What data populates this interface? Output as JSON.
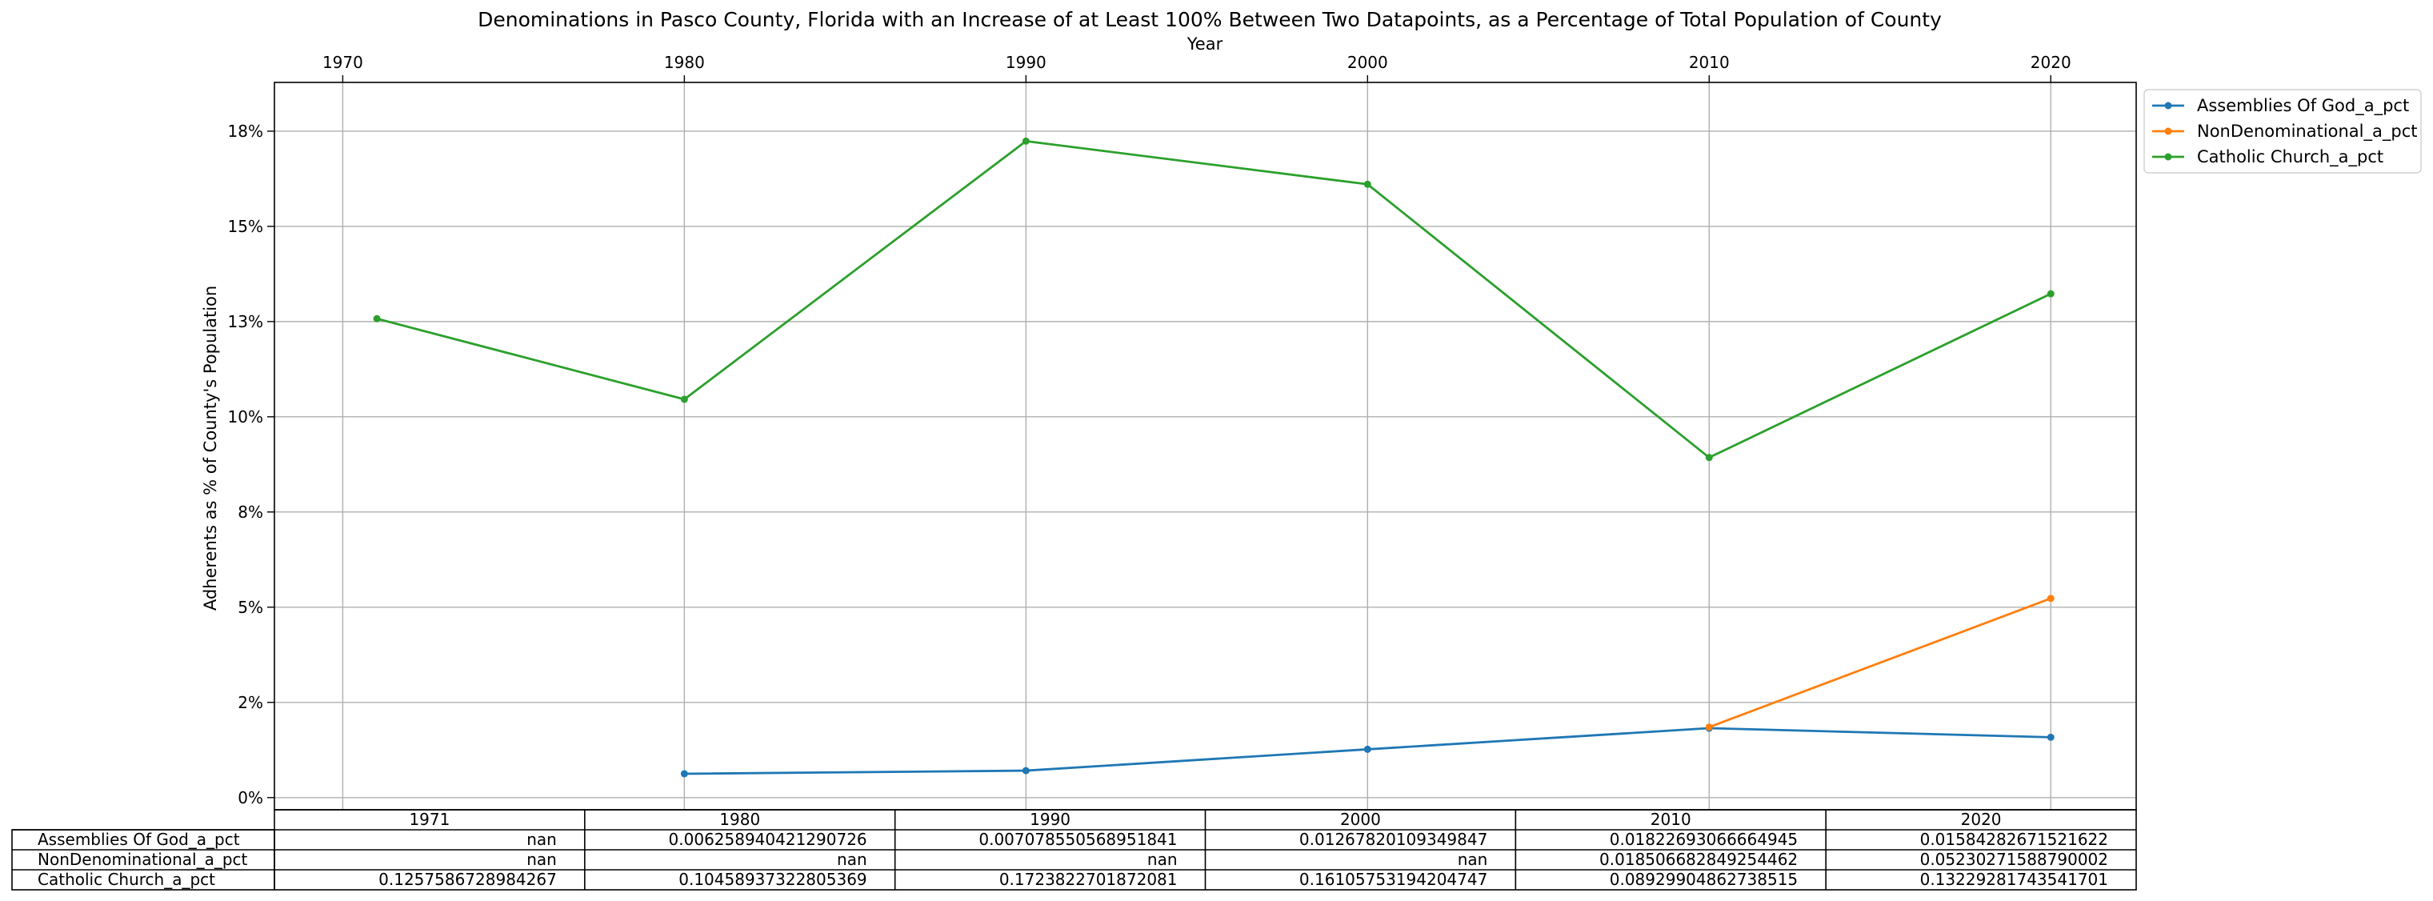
{
  "chart_data": {
    "type": "line",
    "title": "Denominations in Pasco County, Florida with an Increase of at Least 100% Between Two Datapoints, as a Percentage of Total Population of County",
    "xlabel": "Year",
    "ylabel": "Adherents as % of County's Population",
    "x": [
      1971,
      1980,
      1990,
      2000,
      2010,
      2020
    ],
    "xlim": [
      1968,
      2022.5
    ],
    "x_ticks": [
      1970,
      1980,
      1990,
      2000,
      2010,
      2020
    ],
    "x_tick_labels": [
      "1970",
      "1980",
      "1990",
      "2000",
      "2010",
      "2020"
    ],
    "ylim": [
      -0.0032,
      0.1878
    ],
    "y_ticks": [
      0,
      0.025,
      0.05,
      0.075,
      0.1,
      0.125,
      0.15,
      0.175
    ],
    "y_tick_labels": [
      "0%",
      "2%",
      "5%",
      "8%",
      "10%",
      "13%",
      "15%",
      "18%"
    ],
    "grid": true,
    "x_axis_position": "top",
    "legend_position": "outside-right",
    "colors": [
      "#1f77b4",
      "#ff7f0e",
      "#2ca02c"
    ],
    "series": [
      {
        "name": "Assemblies Of God_a_pct",
        "values": [
          null,
          0.006258940421290726,
          0.007078550568951841,
          0.01267820109349847,
          0.01822693066664945,
          0.01584282671521622
        ],
        "color": "#1f77b4"
      },
      {
        "name": "NonDenominational_a_pct",
        "values": [
          null,
          null,
          null,
          null,
          0.018506682849254462,
          0.05230271588790002
        ],
        "color": "#ff7f0e"
      },
      {
        "name": "Catholic Church_a_pct",
        "values": [
          0.1257586728984267,
          0.10458937322805369,
          0.1723822701872081,
          0.16105753194204747,
          0.08929904862738515,
          0.13229281743541701
        ],
        "color": "#2ca02c"
      }
    ],
    "table": {
      "col_labels": [
        "1971",
        "1980",
        "1990",
        "2000",
        "2010",
        "2020"
      ],
      "rows": [
        {
          "label": "Assemblies Of God_a_pct",
          "cells": [
            "nan",
            "0.006258940421290726",
            "0.007078550568951841",
            "0.01267820109349847",
            "0.01822693066664945",
            "0.01584282671521622"
          ]
        },
        {
          "label": "NonDenominational_a_pct",
          "cells": [
            "nan",
            "nan",
            "nan",
            "nan",
            "0.018506682849254462",
            "0.05230271588790002"
          ]
        },
        {
          "label": "Catholic Church_a_pct",
          "cells": [
            "0.1257586728984267",
            "0.10458937322805369",
            "0.1723822701872081",
            "0.16105753194204747",
            "0.08929904862738515",
            "0.13229281743541701"
          ]
        }
      ]
    }
  }
}
